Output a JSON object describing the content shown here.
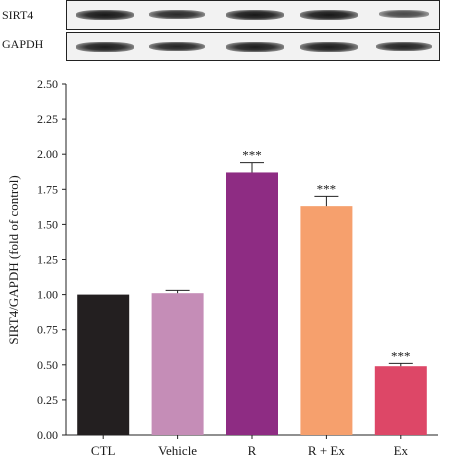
{
  "blot": {
    "rows": [
      {
        "label": "SIRT4",
        "band_intensity": [
          0.95,
          0.8,
          0.95,
          0.95,
          0.55
        ]
      },
      {
        "label": "GAPDH",
        "band_intensity": [
          0.9,
          0.85,
          0.9,
          0.9,
          0.85
        ]
      }
    ]
  },
  "chart_data": {
    "type": "bar",
    "title": "",
    "xlabel": "",
    "ylabel": "SIRT4/GAPDH (fold of control)",
    "categories": [
      "CTL",
      "Vehicle",
      "R",
      "R + Ex",
      "Ex"
    ],
    "values": [
      1.0,
      1.01,
      1.87,
      1.63,
      0.49
    ],
    "errors": [
      0.0,
      0.02,
      0.07,
      0.07,
      0.02
    ],
    "significance": [
      "",
      "",
      "***",
      "***",
      "***"
    ],
    "colors": [
      "#231f20",
      "#c58db7",
      "#8e2c83",
      "#f6a06d",
      "#dd4767"
    ],
    "ylim": [
      0,
      2.5
    ],
    "yticks": [
      "0.00",
      "0.25",
      "0.50",
      "0.75",
      "1.00",
      "1.25",
      "1.50",
      "1.75",
      "2.00",
      "2.25",
      "2.50"
    ],
    "grid": false,
    "legend": "none"
  }
}
